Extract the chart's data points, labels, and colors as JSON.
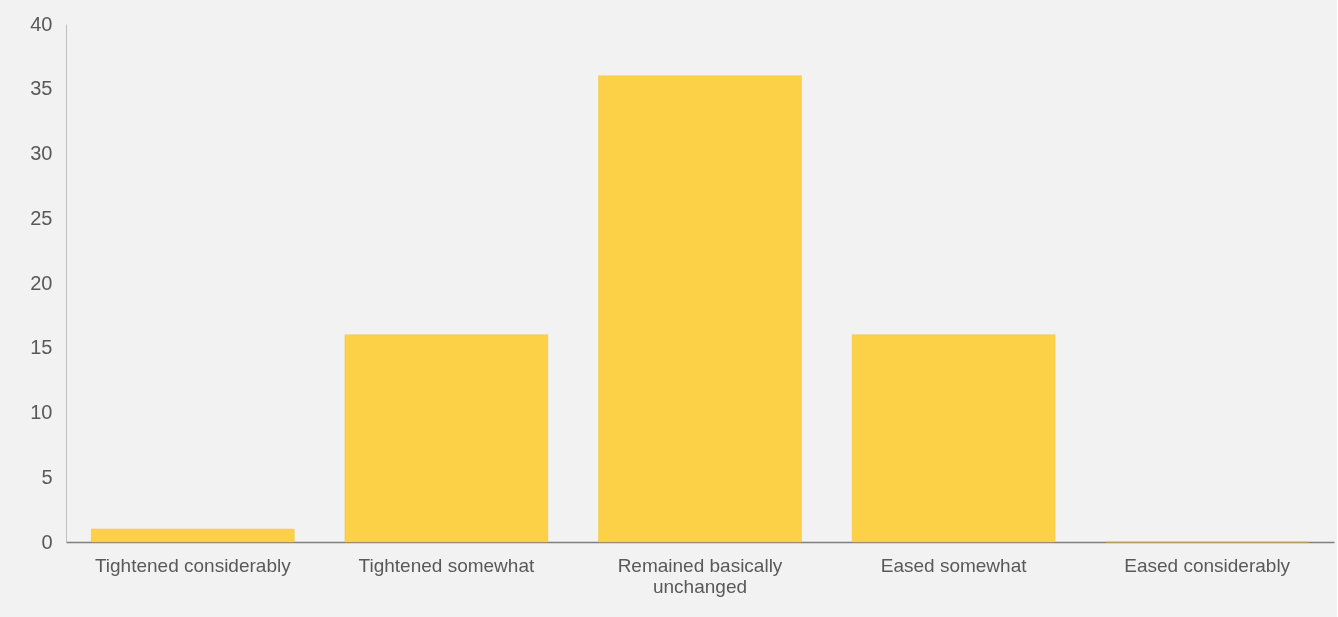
{
  "chart_data": {
    "type": "bar",
    "categories": [
      "Tightened considerably",
      "Tightened somewhat",
      "Remained basically unchanged",
      "Eased somewhat",
      "Eased considerably"
    ],
    "values": [
      1,
      16,
      36,
      16,
      0
    ],
    "color": "#fcd147",
    "ylim": [
      0,
      40
    ],
    "yticks": [
      0,
      5,
      10,
      15,
      20,
      25,
      30,
      35,
      40
    ]
  }
}
